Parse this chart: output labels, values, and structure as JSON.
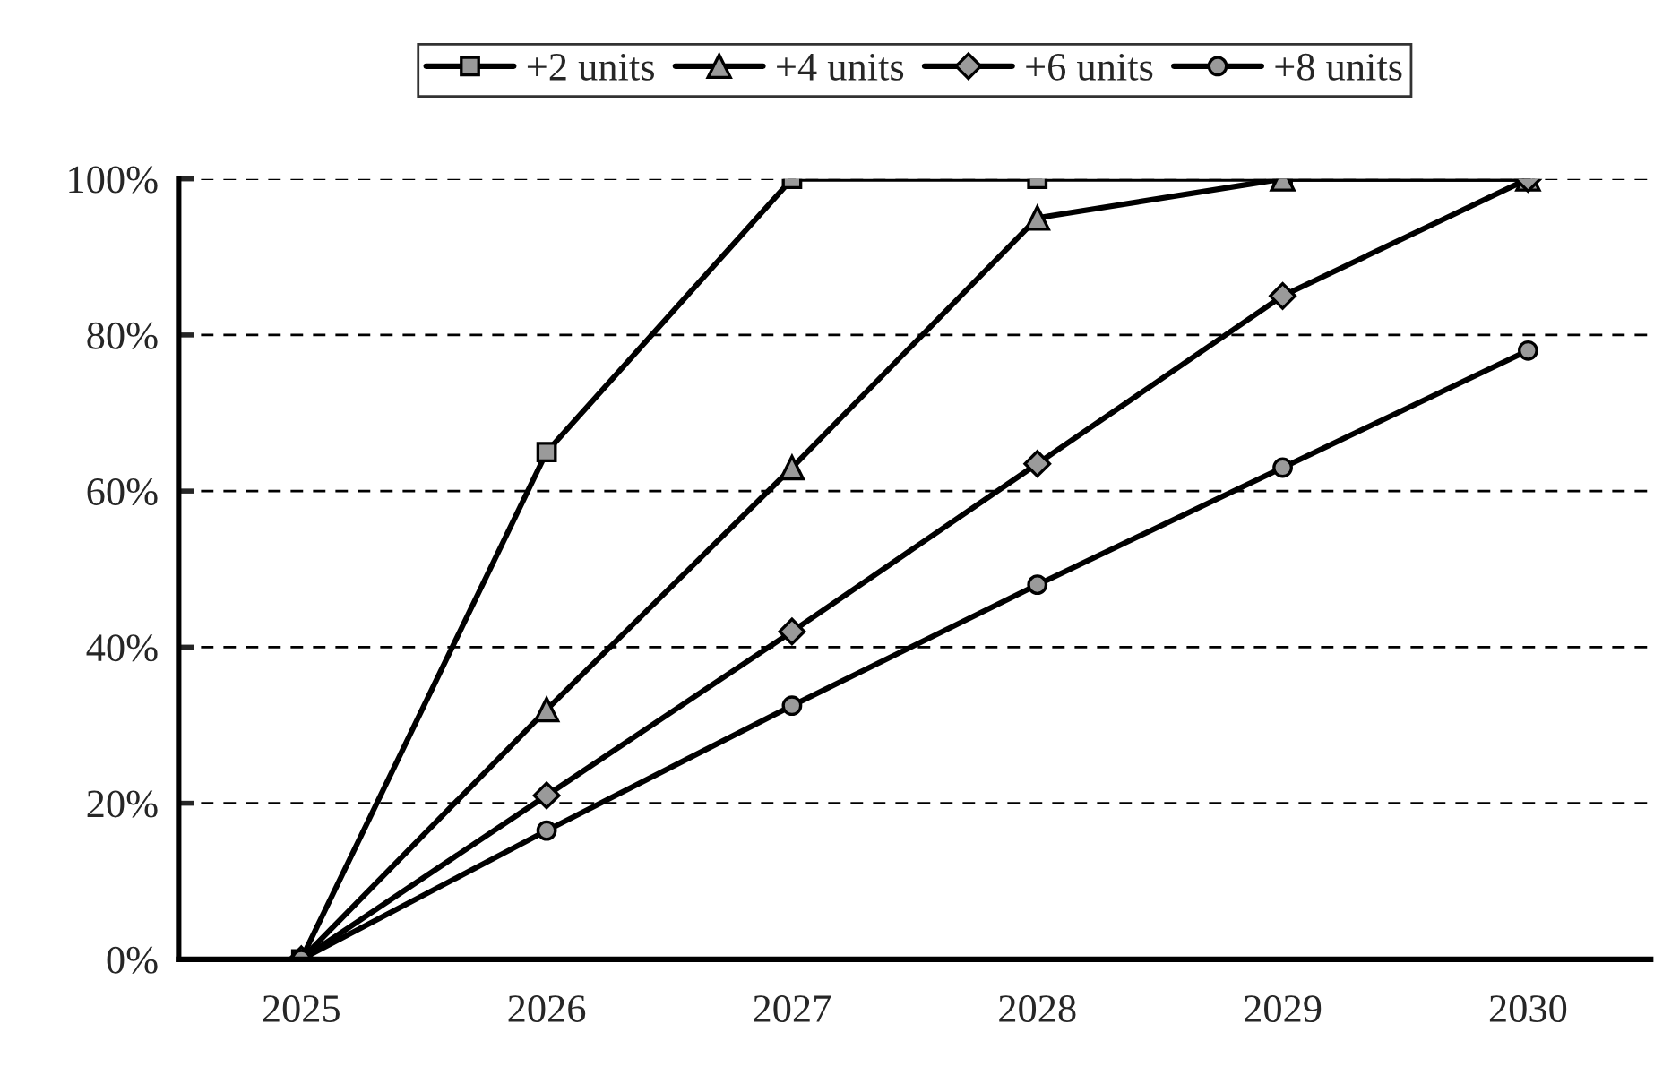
{
  "chart_data": {
    "type": "line",
    "categories": [
      "2025",
      "2026",
      "2027",
      "2028",
      "2029",
      "2030"
    ],
    "series": [
      {
        "name": "+2 units",
        "color": "#000000",
        "marker": "square",
        "values": [
          0,
          65,
          100,
          100,
          100,
          100
        ]
      },
      {
        "name": "+4 units",
        "color": "#000000",
        "marker": "triangle",
        "values": [
          0,
          32,
          63,
          95,
          100,
          100
        ]
      },
      {
        "name": "+6 units",
        "color": "#000000",
        "marker": "diamond",
        "values": [
          0,
          21,
          42,
          63.5,
          85,
          100
        ]
      },
      {
        "name": "+8 units",
        "color": "#000000",
        "marker": "circle",
        "values": [
          0,
          16.5,
          32.5,
          48,
          63,
          78
        ]
      }
    ],
    "ylim": [
      0,
      100
    ],
    "yticks": [
      {
        "value": 0,
        "label": "0%"
      },
      {
        "value": 20,
        "label": "20%"
      },
      {
        "value": 40,
        "label": "40%"
      },
      {
        "value": 60,
        "label": "60%"
      },
      {
        "value": 80,
        "label": "80%"
      },
      {
        "value": 100,
        "label": "100%"
      }
    ],
    "grid": "y",
    "legend": "top",
    "line_style": "solid"
  }
}
